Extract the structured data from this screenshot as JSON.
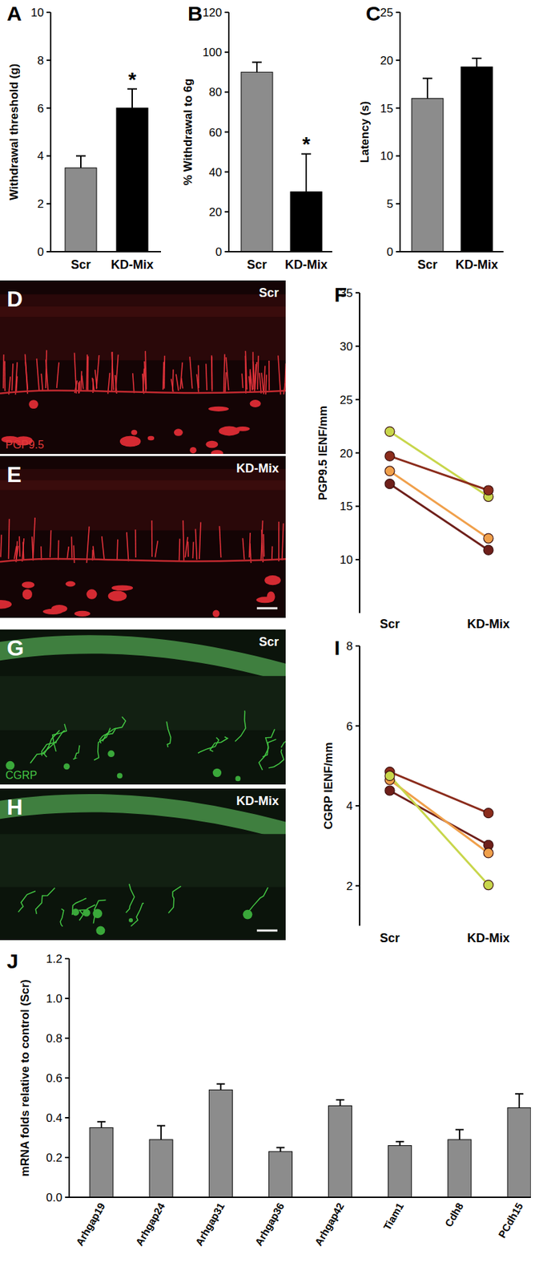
{
  "panels": [
    {
      "label": "D",
      "condition": "Scr",
      "stain": "PGP9.5"
    },
    {
      "label": "E",
      "condition": "KD-Mix"
    },
    {
      "label": "G",
      "condition": "Scr",
      "stain": "CGRP"
    },
    {
      "label": "H",
      "condition": "KD-Mix"
    }
  ],
  "chart_data": [
    {
      "label": "A",
      "type": "bar",
      "y_label": "Withdrawal threshold (g)",
      "categories": [
        "Scr",
        "KD-Mix"
      ],
      "values": [
        3.5,
        6.0
      ],
      "errors": [
        0.5,
        0.8
      ],
      "colors": [
        "#8c8c8c",
        "#000000"
      ],
      "ylim": [
        0,
        10
      ],
      "yticks": [
        0,
        2,
        4,
        6,
        8,
        10
      ],
      "annotations": [
        {
          "text": "*",
          "category": "KD-Mix"
        }
      ]
    },
    {
      "label": "B",
      "type": "bar",
      "y_label": "% Withdrawal to 6g",
      "categories": [
        "Scr",
        "KD-Mix"
      ],
      "values": [
        90,
        30
      ],
      "errors": [
        5,
        19
      ],
      "colors": [
        "#8c8c8c",
        "#000000"
      ],
      "ylim": [
        0,
        120
      ],
      "yticks": [
        0,
        20,
        40,
        60,
        80,
        100,
        120
      ],
      "annotations": [
        {
          "text": "*",
          "category": "KD-Mix"
        }
      ]
    },
    {
      "label": "C",
      "type": "bar",
      "y_label": "Latency (s)",
      "categories": [
        "Scr",
        "KD-Mix"
      ],
      "values": [
        16.0,
        19.3
      ],
      "errors": [
        2.1,
        0.9
      ],
      "colors": [
        "#8c8c8c",
        "#000000"
      ],
      "ylim": [
        0,
        25
      ],
      "yticks": [
        0,
        5,
        10,
        15,
        20,
        25
      ]
    },
    {
      "label": "F",
      "type": "line",
      "y_label": "PGP9.5 IENF/mm",
      "categories": [
        "Scr",
        "KD-Mix"
      ],
      "marker": "circle",
      "ylim": [
        5,
        35
      ],
      "yticks": [
        10,
        15,
        20,
        25,
        30,
        35
      ],
      "series": [
        {
          "color": "#c8d64b",
          "values": [
            22.0,
            15.9
          ]
        },
        {
          "color": "#f0a04b",
          "values": [
            18.3,
            12.0
          ]
        },
        {
          "color": "#8b2c1c",
          "values": [
            19.7,
            16.5
          ]
        },
        {
          "color": "#6e1f1a",
          "values": [
            17.1,
            10.9
          ]
        }
      ]
    },
    {
      "label": "I",
      "type": "line",
      "y_label": "CGRP IENF/mm",
      "categories": [
        "Scr",
        "KD-Mix"
      ],
      "marker": "circle",
      "ylim": [
        1,
        8
      ],
      "yticks": [
        2,
        4,
        6,
        8
      ],
      "series": [
        {
          "color": "#8b2c1c",
          "values": [
            4.85,
            3.82
          ]
        },
        {
          "color": "#6e1f1a",
          "values": [
            4.38,
            3.02
          ]
        },
        {
          "color": "#f0a04b",
          "values": [
            4.65,
            2.82
          ]
        },
        {
          "color": "#c8d64b",
          "values": [
            4.75,
            2.02
          ]
        }
      ]
    },
    {
      "label": "J",
      "type": "bar",
      "y_label": "mRNA folds relative to control (Scr)",
      "categories": [
        "Arhgap19",
        "Arhgap24",
        "Arhgap31",
        "Arhgap36",
        "Arhgap42",
        "Tiam1",
        "Cdh8",
        "PCdh15"
      ],
      "values": [
        0.35,
        0.29,
        0.54,
        0.23,
        0.46,
        0.26,
        0.29,
        0.45
      ],
      "errors": [
        0.03,
        0.07,
        0.03,
        0.02,
        0.03,
        0.02,
        0.05,
        0.07
      ],
      "color": "#8c8c8c",
      "ylim": [
        0,
        1.2
      ],
      "yticks": [
        {
          "value": 0,
          "label": "0.0"
        },
        0.2,
        0.4,
        0.6,
        0.8,
        {
          "value": 1,
          "label": "1.0"
        },
        1.2
      ]
    }
  ]
}
